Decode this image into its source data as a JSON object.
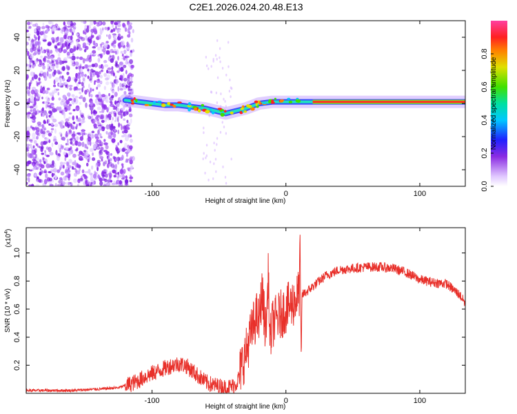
{
  "title": "C2E1.2026.024.20.48.E13",
  "chart_data": [
    {
      "type": "heatmap",
      "name": "spectrogram",
      "xlabel": "Height of straight line (km)",
      "ylabel": "Frequency (Hz)",
      "xlim": [
        -194,
        134
      ],
      "ylim": [
        -50,
        50
      ],
      "xticks": [
        -100,
        0,
        100
      ],
      "yticks": [
        -40,
        -20,
        0,
        20,
        40
      ],
      "colorbar": {
        "label": "Normalized spectral amplitude",
        "range": [
          0,
          1
        ],
        "ticks": [
          0.0,
          0.2,
          0.4,
          0.6,
          0.8
        ]
      },
      "trace": {
        "x": [
          -120,
          -110,
          -100,
          -90,
          -80,
          -70,
          -60,
          -50,
          -45,
          -40,
          -30,
          -20,
          -10,
          0,
          10,
          20,
          30,
          40,
          50,
          60,
          70,
          80,
          90,
          100,
          110,
          120,
          134
        ],
        "frequency": [
          2,
          1,
          0,
          -1,
          -1,
          -2,
          -3,
          -5,
          -6,
          -5,
          -3,
          0,
          1,
          1,
          1,
          1,
          1,
          1,
          1,
          1,
          1,
          1,
          1,
          1,
          1,
          1,
          1
        ]
      }
    },
    {
      "type": "line",
      "name": "snr",
      "xlabel": "Height of straight line (km)",
      "ylabel": "SNR (10 * v/v)",
      "multiplier_base": "(x10",
      "multiplier_exp": "4",
      "multiplier_close": ")",
      "xlim": [
        -194,
        134
      ],
      "ylim": [
        0,
        1.18
      ],
      "xticks": [
        -100,
        0,
        100
      ],
      "yticks": [
        0.2,
        0.4,
        0.6,
        0.8,
        1.0
      ],
      "color": "#e8302a",
      "series": {
        "name": "SNR",
        "x": [
          -194,
          -180,
          -160,
          -140,
          -125,
          -115,
          -110,
          -105,
          -100,
          -95,
          -90,
          -85,
          -80,
          -75,
          -70,
          -65,
          -60,
          -55,
          -50,
          -45,
          -40,
          -37,
          -35,
          -33,
          -30,
          -28,
          -25,
          -22,
          -20,
          -18,
          -15,
          -13,
          -12,
          -10,
          -8,
          -5,
          -2,
          0,
          5,
          8,
          10,
          10.5,
          11,
          11.5,
          12,
          15,
          20,
          25,
          30,
          35,
          40,
          50,
          60,
          70,
          80,
          90,
          100,
          110,
          120,
          125,
          130,
          134
        ],
        "y": [
          0.02,
          0.02,
          0.02,
          0.03,
          0.04,
          0.07,
          0.09,
          0.12,
          0.14,
          0.16,
          0.18,
          0.2,
          0.21,
          0.2,
          0.16,
          0.12,
          0.08,
          0.06,
          0.05,
          0.04,
          0.05,
          0.07,
          0.12,
          0.2,
          0.28,
          0.36,
          0.46,
          0.55,
          0.5,
          0.72,
          0.45,
          0.86,
          0.35,
          0.5,
          0.52,
          0.55,
          0.58,
          0.6,
          0.64,
          0.68,
          0.72,
          1.2,
          0.62,
          0.2,
          0.7,
          0.72,
          0.76,
          0.8,
          0.84,
          0.86,
          0.88,
          0.89,
          0.9,
          0.9,
          0.89,
          0.86,
          0.81,
          0.79,
          0.78,
          0.74,
          0.7,
          0.64
        ]
      }
    }
  ]
}
